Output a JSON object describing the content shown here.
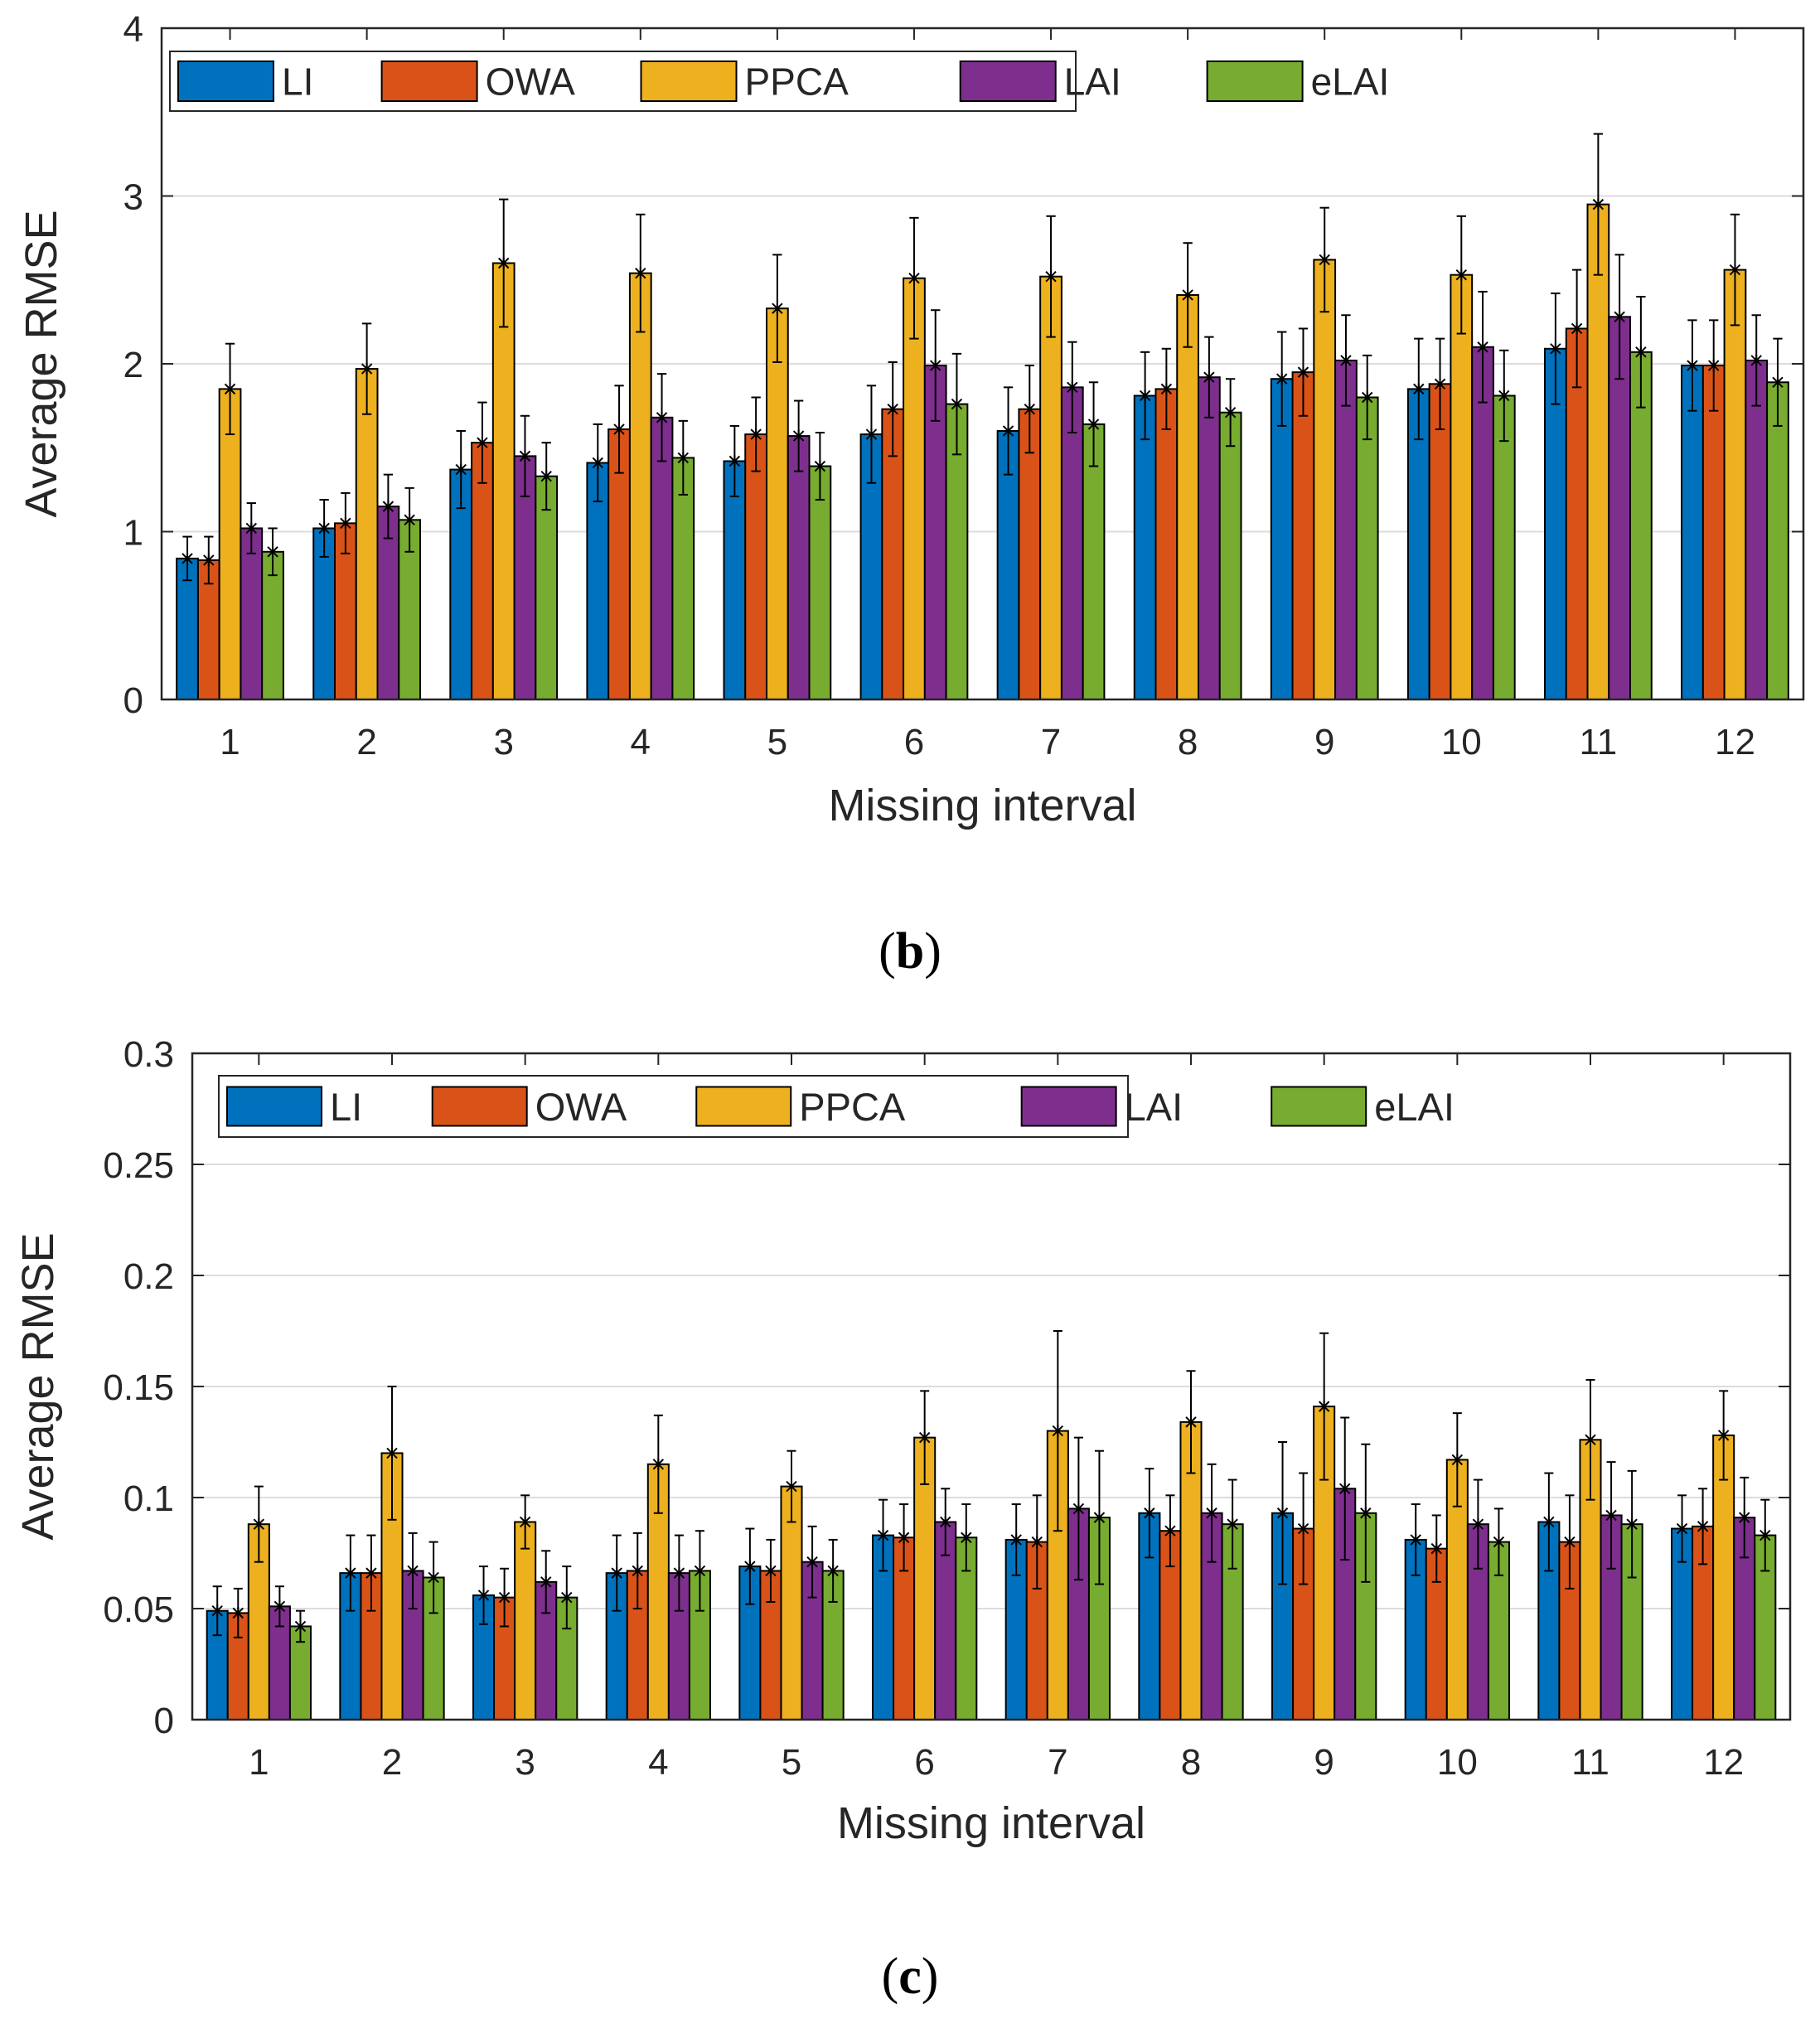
{
  "series_colors": {
    "LI": "#0072BD",
    "OWA": "#D95319",
    "PPCA": "#EDB120",
    "LAI": "#7E2F8E",
    "eLAI": "#77AC30"
  },
  "chart_data": [
    {
      "type": "bar",
      "panel": "b",
      "caption_open": "(",
      "caption_letter": "b",
      "caption_close": ")",
      "xlabel": "Missing interval",
      "ylabel": "Average RMSE",
      "ylim": [
        0,
        4
      ],
      "yticks": [
        0,
        1,
        2,
        3,
        4
      ],
      "ytick_labels": [
        "0",
        "1",
        "2",
        "3",
        "4"
      ],
      "grid": true,
      "legend_position": "top-left",
      "categories": [
        "1",
        "2",
        "3",
        "4",
        "5",
        "6",
        "7",
        "8",
        "9",
        "10",
        "11",
        "12"
      ],
      "series": [
        {
          "name": "LI",
          "values": [
            0.84,
            1.02,
            1.37,
            1.41,
            1.42,
            1.58,
            1.6,
            1.81,
            1.91,
            1.85,
            2.09,
            1.99
          ],
          "errors": [
            0.13,
            0.17,
            0.23,
            0.23,
            0.21,
            0.29,
            0.26,
            0.26,
            0.28,
            0.3,
            0.33,
            0.27
          ]
        },
        {
          "name": "OWA",
          "values": [
            0.83,
            1.05,
            1.53,
            1.61,
            1.58,
            1.73,
            1.73,
            1.85,
            1.95,
            1.88,
            2.21,
            1.99
          ],
          "errors": [
            0.14,
            0.18,
            0.24,
            0.26,
            0.22,
            0.28,
            0.26,
            0.24,
            0.26,
            0.27,
            0.35,
            0.27
          ]
        },
        {
          "name": "PPCA",
          "values": [
            1.85,
            1.97,
            2.6,
            2.54,
            2.33,
            2.51,
            2.52,
            2.41,
            2.62,
            2.53,
            2.95,
            2.56
          ],
          "errors": [
            0.27,
            0.27,
            0.38,
            0.35,
            0.32,
            0.36,
            0.36,
            0.31,
            0.31,
            0.35,
            0.42,
            0.33
          ]
        },
        {
          "name": "LAI",
          "values": [
            1.02,
            1.15,
            1.45,
            1.68,
            1.57,
            1.99,
            1.86,
            1.92,
            2.02,
            2.1,
            2.28,
            2.02
          ],
          "errors": [
            0.15,
            0.19,
            0.24,
            0.26,
            0.21,
            0.33,
            0.27,
            0.24,
            0.27,
            0.33,
            0.37,
            0.27
          ]
        },
        {
          "name": "eLAI",
          "values": [
            0.88,
            1.07,
            1.33,
            1.44,
            1.39,
            1.76,
            1.64,
            1.71,
            1.8,
            1.81,
            2.07,
            1.89
          ],
          "errors": [
            0.14,
            0.19,
            0.2,
            0.22,
            0.2,
            0.3,
            0.25,
            0.2,
            0.25,
            0.27,
            0.33,
            0.26
          ]
        }
      ]
    },
    {
      "type": "bar",
      "panel": "c",
      "caption_open": "(",
      "caption_letter": "c",
      "caption_close": ")",
      "xlabel": "Missing interval",
      "ylabel": "Average RMSE",
      "ylim": [
        0,
        0.3
      ],
      "yticks": [
        0,
        0.05,
        0.1,
        0.15,
        0.2,
        0.25,
        0.3
      ],
      "ytick_labels": [
        "0",
        "0.05",
        "0.1",
        "0.15",
        "0.2",
        "0.25",
        "0.3"
      ],
      "grid": true,
      "legend_position": "top-left",
      "categories": [
        "1",
        "2",
        "3",
        "4",
        "5",
        "6",
        "7",
        "8",
        "9",
        "10",
        "11",
        "12"
      ],
      "series": [
        {
          "name": "LI",
          "values": [
            0.049,
            0.066,
            0.056,
            0.066,
            0.069,
            0.083,
            0.081,
            0.093,
            0.093,
            0.081,
            0.089,
            0.086
          ],
          "errors": [
            0.011,
            0.017,
            0.013,
            0.017,
            0.017,
            0.016,
            0.016,
            0.02,
            0.032,
            0.016,
            0.022,
            0.015
          ]
        },
        {
          "name": "OWA",
          "values": [
            0.048,
            0.066,
            0.055,
            0.067,
            0.067,
            0.082,
            0.08,
            0.085,
            0.086,
            0.077,
            0.08,
            0.087
          ],
          "errors": [
            0.011,
            0.017,
            0.013,
            0.017,
            0.014,
            0.015,
            0.021,
            0.016,
            0.025,
            0.015,
            0.021,
            0.017
          ]
        },
        {
          "name": "PPCA",
          "values": [
            0.088,
            0.12,
            0.089,
            0.115,
            0.105,
            0.127,
            0.13,
            0.134,
            0.141,
            0.117,
            0.126,
            0.128
          ],
          "errors": [
            0.017,
            0.03,
            0.012,
            0.022,
            0.016,
            0.021,
            0.045,
            0.023,
            0.033,
            0.021,
            0.027,
            0.02
          ]
        },
        {
          "name": "LAI",
          "values": [
            0.051,
            0.067,
            0.062,
            0.066,
            0.071,
            0.089,
            0.095,
            0.093,
            0.104,
            0.088,
            0.092,
            0.091
          ],
          "errors": [
            0.009,
            0.017,
            0.014,
            0.017,
            0.016,
            0.015,
            0.032,
            0.022,
            0.032,
            0.02,
            0.024,
            0.018
          ]
        },
        {
          "name": "eLAI",
          "values": [
            0.042,
            0.064,
            0.055,
            0.067,
            0.067,
            0.082,
            0.091,
            0.088,
            0.093,
            0.08,
            0.088,
            0.083
          ],
          "errors": [
            0.007,
            0.016,
            0.014,
            0.018,
            0.014,
            0.015,
            0.03,
            0.02,
            0.031,
            0.015,
            0.024,
            0.016
          ]
        }
      ]
    }
  ]
}
